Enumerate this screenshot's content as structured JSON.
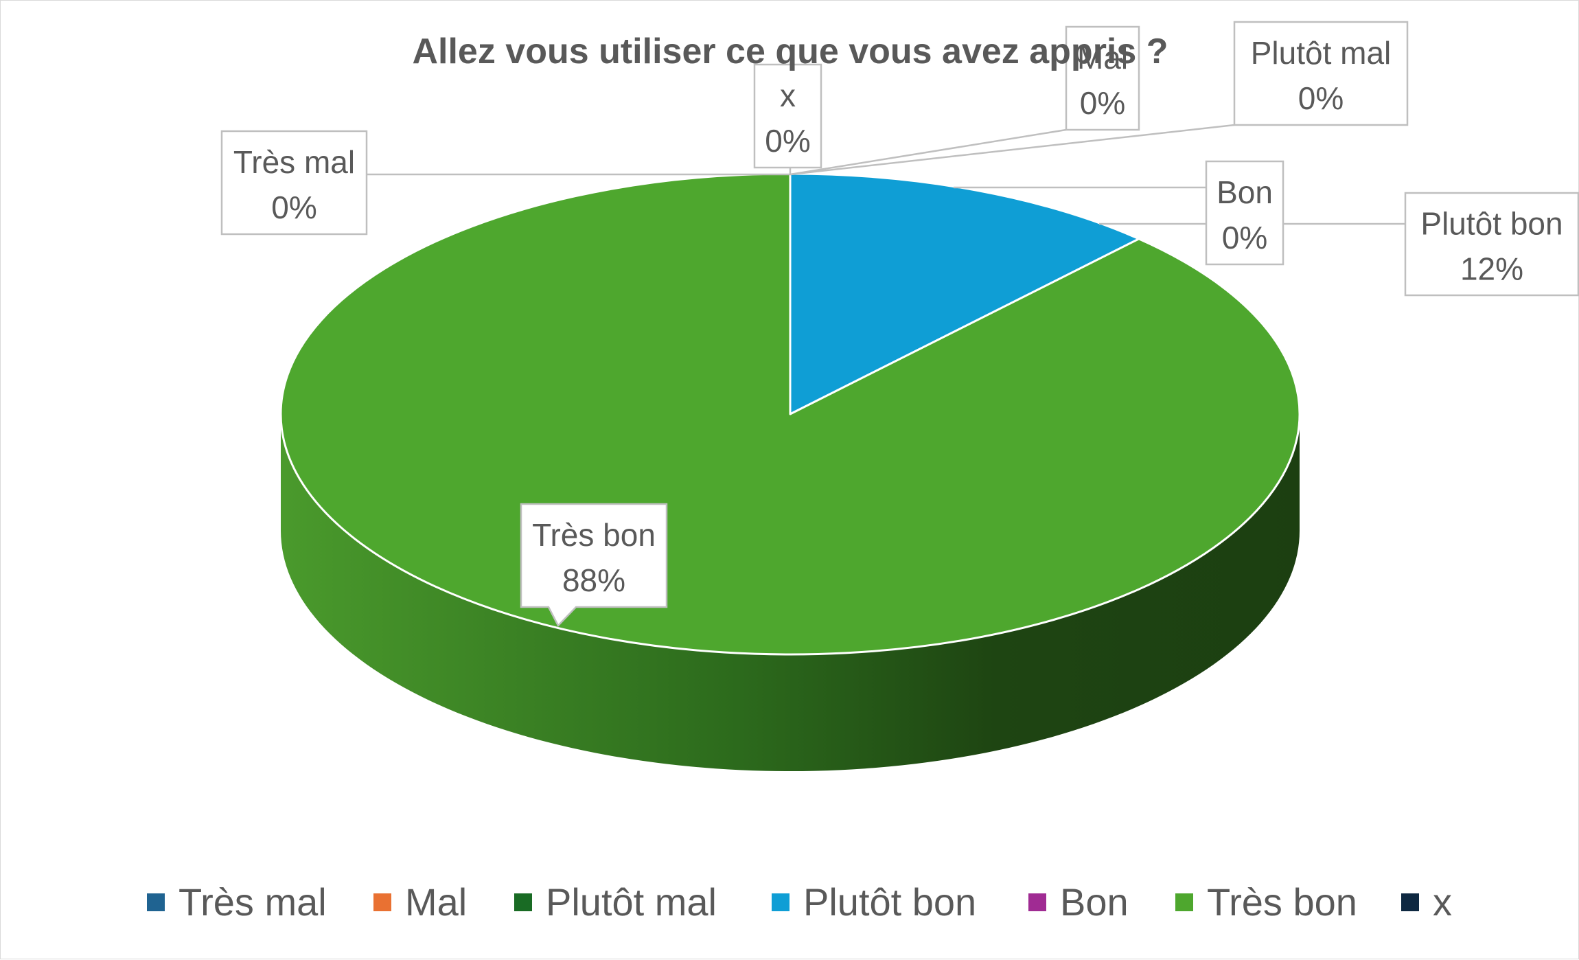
{
  "chart_data": {
    "type": "pie",
    "style": "3d",
    "title": "Allez vous utiliser ce que vous avez appris ?",
    "categories": [
      "Très mal",
      "Mal",
      "Plutôt mal",
      "Plutôt bon",
      "Bon",
      "Très bon",
      "x"
    ],
    "values": [
      0,
      0,
      0,
      12,
      0,
      88,
      0
    ],
    "value_labels": [
      "0%",
      "0%",
      "0%",
      "12%",
      "0%",
      "88%",
      "0%"
    ],
    "colors": [
      "#1f6391",
      "#e97132",
      "#196b24",
      "#0f9ed5",
      "#a02b93",
      "#4ea72e",
      "#0e2841"
    ],
    "legend_position": "bottom"
  }
}
